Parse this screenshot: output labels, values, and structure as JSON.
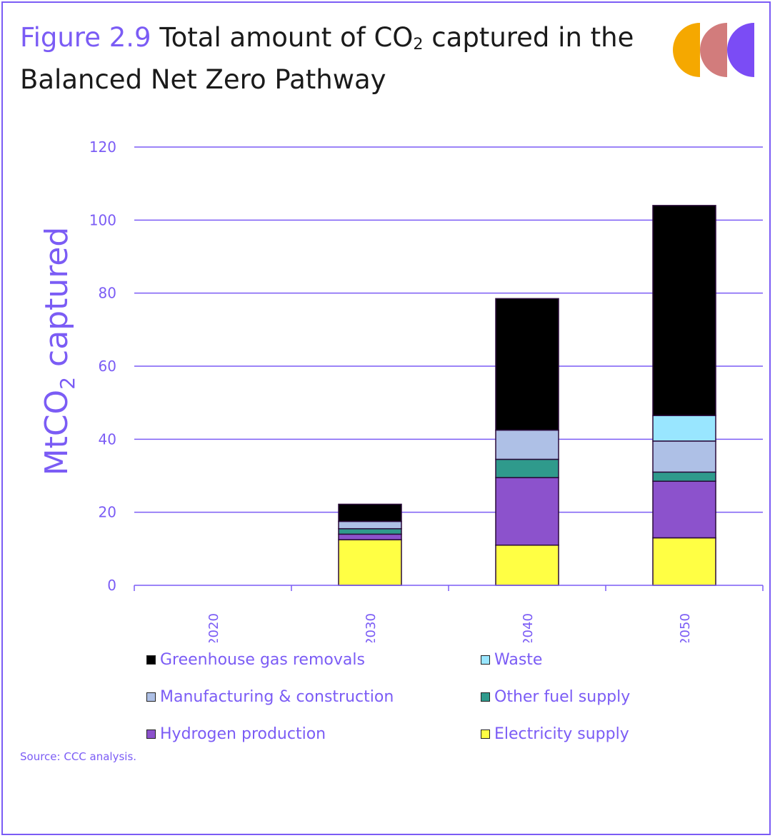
{
  "header": {
    "figure_label": "Figure 2.9",
    "title_part1": "Total amount of CO",
    "title_sub": "2",
    "title_part2": " captured in the",
    "title_line2": "Balanced Net Zero Pathway"
  },
  "logo": {
    "colors": [
      "#f5a800",
      "#d27c7c",
      "#7b4cf5"
    ],
    "icon": "ccc-logo"
  },
  "colors": {
    "accent": "#7b5cf5",
    "grid": "#7b5cf5"
  },
  "chart_data": {
    "type": "bar",
    "stacked": true,
    "categories": [
      "2020",
      "2030",
      "2040",
      "2050"
    ],
    "ylabel_main": "MtCO",
    "ylabel_sub": "2",
    "ylabel_rest": " captured",
    "ylim": [
      0,
      120
    ],
    "yticks": [
      0,
      20,
      40,
      60,
      80,
      100,
      120
    ],
    "grid": true,
    "legend_position": "bottom",
    "series": [
      {
        "name": "Electricity supply",
        "color": "#ffff44",
        "values": [
          0,
          12.5,
          11,
          13
        ]
      },
      {
        "name": "Hydrogen production",
        "color": "#8c52cc",
        "values": [
          0,
          1.5,
          18.5,
          15.5
        ]
      },
      {
        "name": "Other fuel supply",
        "color": "#2f9a8c",
        "values": [
          0,
          1.5,
          5,
          2.5
        ]
      },
      {
        "name": "Manufacturing & construction",
        "color": "#aec0e6",
        "values": [
          0,
          2,
          8,
          8.5
        ]
      },
      {
        "name": "Waste",
        "color": "#99e6ff",
        "values": [
          0,
          0,
          0,
          7
        ]
      },
      {
        "name": "Greenhouse gas removals",
        "color": "#000000",
        "values": [
          0,
          4.7,
          36,
          57.5
        ]
      }
    ]
  },
  "legend": [
    {
      "label": "Greenhouse gas removals",
      "color": "#000000"
    },
    {
      "label": "Waste",
      "color": "#99e6ff"
    },
    {
      "label": "Manufacturing & construction",
      "color": "#aec0e6"
    },
    {
      "label": "Other fuel supply",
      "color": "#2f9a8c"
    },
    {
      "label": "Hydrogen production",
      "color": "#8c52cc"
    },
    {
      "label": "Electricity supply",
      "color": "#ffff44"
    }
  ],
  "source": "Source: CCC analysis."
}
